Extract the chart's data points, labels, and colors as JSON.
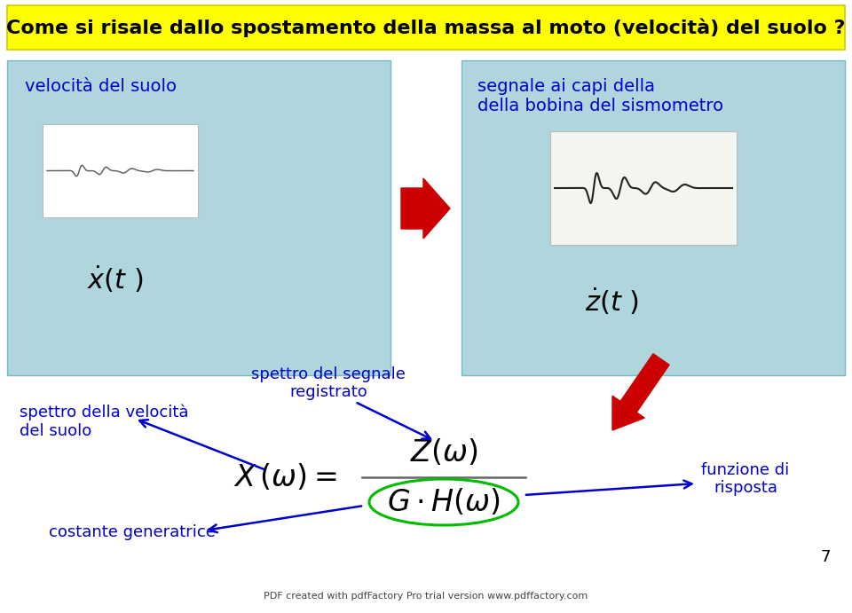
{
  "bg_color": "#ffffff",
  "title_box_color": "#ffff00",
  "title_text": "Come si risale dallo spostamento della massa al moto (velocità) del suolo ?",
  "title_fontsize": 16,
  "box_left_color": "#aed6dc",
  "box_right_color": "#aed6dc",
  "box_left_label": "velocità del suolo",
  "box_right_label": "segnale ai capi della\ndella bobina del sismometro",
  "box_left_sublabel": "$\\dot{x}(t\\ )$",
  "box_right_sublabel": "$\\dot{z}(t\\ )$",
  "arrow_label_left": "spettro della velocità\ndel suolo",
  "arrow_label_center": "spettro del segnale\nregistrato",
  "arrow_label_right": "funzione di\nrisposta",
  "arrow_label_bottom": "costante generatrice",
  "footer": "PDF created with pdfFactory Pro trial version www.pdffactory.com",
  "footer_url": "www.pdffactory.com",
  "page_number": "7",
  "label_color": "#0000cc",
  "red_arrow_color": "#cc0000",
  "green_circle_color": "#00bb00",
  "formula_color": "#000000",
  "box_text_color": "#0000cc",
  "box_border_color": "#7ab8c2"
}
